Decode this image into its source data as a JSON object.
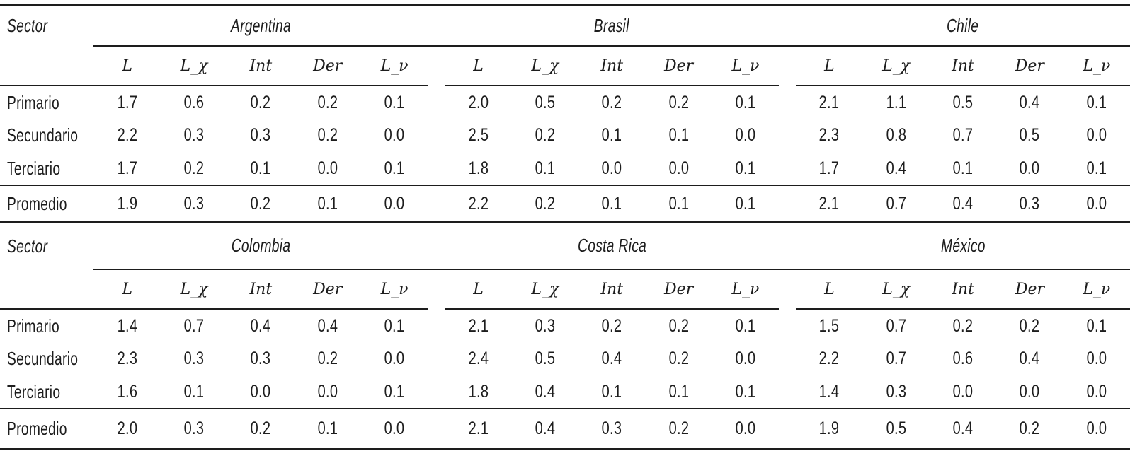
{
  "sector_label": "Sector",
  "column_headers": [
    "L",
    "L_χ",
    "Int",
    "Der",
    "L_ν"
  ],
  "row_labels": [
    "Primario",
    "Secundario",
    "Terciario",
    "Promedio"
  ],
  "sections": [
    {
      "countries": [
        {
          "name": "Argentina",
          "values": [
            [
              "1.7",
              "0.6",
              "0.2",
              "0.2",
              "0.1"
            ],
            [
              "2.2",
              "0.3",
              "0.3",
              "0.2",
              "0.0"
            ],
            [
              "1.7",
              "0.2",
              "0.1",
              "0.0",
              "0.1"
            ],
            [
              "1.9",
              "0.3",
              "0.2",
              "0.1",
              "0.0"
            ]
          ]
        },
        {
          "name": "Brasil",
          "values": [
            [
              "2.0",
              "0.5",
              "0.2",
              "0.2",
              "0.1"
            ],
            [
              "2.5",
              "0.2",
              "0.1",
              "0.1",
              "0.0"
            ],
            [
              "1.8",
              "0.1",
              "0.0",
              "0.0",
              "0.1"
            ],
            [
              "2.2",
              "0.2",
              "0.1",
              "0.1",
              "0.1"
            ]
          ]
        },
        {
          "name": "Chile",
          "values": [
            [
              "2.1",
              "1.1",
              "0.5",
              "0.4",
              "0.1"
            ],
            [
              "2.3",
              "0.8",
              "0.7",
              "0.5",
              "0.0"
            ],
            [
              "1.7",
              "0.4",
              "0.1",
              "0.0",
              "0.1"
            ],
            [
              "2.1",
              "0.7",
              "0.4",
              "0.3",
              "0.0"
            ]
          ]
        }
      ]
    },
    {
      "countries": [
        {
          "name": "Colombia",
          "values": [
            [
              "1.4",
              "0.7",
              "0.4",
              "0.4",
              "0.1"
            ],
            [
              "2.3",
              "0.3",
              "0.3",
              "0.2",
              "0.0"
            ],
            [
              "1.6",
              "0.1",
              "0.0",
              "0.0",
              "0.1"
            ],
            [
              "2.0",
              "0.3",
              "0.2",
              "0.1",
              "0.0"
            ]
          ]
        },
        {
          "name": "Costa Rica",
          "values": [
            [
              "2.1",
              "0.3",
              "0.2",
              "0.2",
              "0.1"
            ],
            [
              "2.4",
              "0.5",
              "0.4",
              "0.2",
              "0.0"
            ],
            [
              "1.8",
              "0.4",
              "0.1",
              "0.1",
              "0.1"
            ],
            [
              "2.1",
              "0.4",
              "0.3",
              "0.2",
              "0.0"
            ]
          ]
        },
        {
          "name": "México",
          "values": [
            [
              "1.5",
              "0.7",
              "0.2",
              "0.2",
              "0.1"
            ],
            [
              "2.2",
              "0.7",
              "0.6",
              "0.4",
              "0.0"
            ],
            [
              "1.4",
              "0.3",
              "0.0",
              "0.0",
              "0.0"
            ],
            [
              "1.9",
              "0.5",
              "0.4",
              "0.2",
              "0.0"
            ]
          ]
        }
      ]
    }
  ],
  "colors": {
    "text": "#1d1d1d",
    "rule": "#1d1d1d",
    "background": "#ffffff"
  }
}
